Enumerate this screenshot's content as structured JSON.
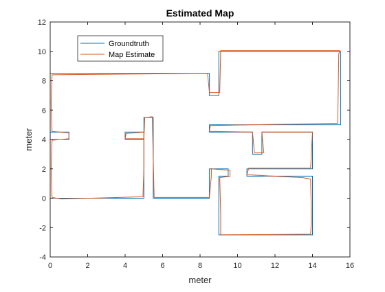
{
  "chart_data": {
    "type": "line",
    "title": "Estimated Map",
    "xlabel": "meter",
    "ylabel": "meter",
    "xlim": [
      0,
      16
    ],
    "ylim": [
      -4,
      12
    ],
    "xticks": [
      "0",
      "2",
      "4",
      "6",
      "8",
      "10",
      "12",
      "14",
      "16"
    ],
    "yticks": [
      "-4",
      "-2",
      "0",
      "2",
      "4",
      "6",
      "8",
      "10",
      "12"
    ],
    "grid": false,
    "legend_position": "top-left",
    "colors": {
      "groundtruth": "#0072BD",
      "estimate": "#D95319",
      "axes": "#262626"
    },
    "series": [
      {
        "name": "Groundtruth",
        "paths": [
          [
            [
              0,
              0
            ],
            [
              0,
              4
            ],
            [
              1,
              4
            ],
            [
              1,
              4.5
            ],
            [
              0,
              4.5
            ],
            [
              0,
              8.5
            ],
            [
              8.5,
              8.5
            ],
            [
              8.5,
              7
            ],
            [
              9,
              7
            ],
            [
              9,
              10
            ],
            [
              15.5,
              10
            ],
            [
              15.5,
              5
            ],
            [
              8.5,
              5
            ],
            [
              8.5,
              4.5
            ],
            [
              10.8,
              4.5
            ],
            [
              10.8,
              3
            ],
            [
              11.3,
              3
            ],
            [
              11.3,
              4.5
            ],
            [
              14,
              4.5
            ],
            [
              14,
              2
            ],
            [
              10.5,
              2
            ],
            [
              10.5,
              1.5
            ],
            [
              14,
              1.5
            ],
            [
              14,
              -2.5
            ],
            [
              9,
              -2.5
            ],
            [
              9,
              1.5
            ],
            [
              9.5,
              1.5
            ],
            [
              9.5,
              2
            ],
            [
              8.5,
              2
            ],
            [
              8.5,
              0
            ],
            [
              5.5,
              0
            ],
            [
              5.5,
              5.5
            ],
            [
              5,
              5.5
            ],
            [
              5,
              4
            ],
            [
              4,
              4
            ],
            [
              4,
              4.5
            ],
            [
              5,
              4.5
            ],
            [
              5,
              0
            ],
            [
              0,
              0
            ]
          ]
        ]
      },
      {
        "name": "Map Estimate",
        "paths": [
          [
            [
              0.1,
              0.05
            ],
            [
              0.05,
              2
            ],
            [
              0.1,
              3.95
            ],
            [
              1,
              4.05
            ],
            [
              1,
              4.45
            ],
            [
              0.1,
              4.55
            ],
            [
              0.05,
              6.5
            ],
            [
              0.1,
              8.4
            ],
            [
              4,
              8.45
            ],
            [
              8.4,
              8.5
            ],
            [
              8.5,
              7.2
            ],
            [
              9.05,
              7.2
            ],
            [
              9.1,
              10.05
            ],
            [
              15.45,
              10.05
            ],
            [
              15.4,
              9.8
            ],
            [
              15.35,
              5.1
            ],
            [
              8.55,
              4.95
            ],
            [
              8.5,
              4.55
            ],
            [
              10.8,
              4.5
            ],
            [
              10.9,
              3.1
            ],
            [
              11.4,
              3.1
            ],
            [
              11.3,
              4.5
            ],
            [
              14,
              4.5
            ],
            [
              13.9,
              2.05
            ],
            [
              10.6,
              2.05
            ],
            [
              10.5,
              1.6
            ],
            [
              13.5,
              1.4
            ],
            [
              13.9,
              1.3
            ],
            [
              13.95,
              -1.5
            ],
            [
              13.9,
              -2.45
            ],
            [
              9.1,
              -2.5
            ],
            [
              9.1,
              -1
            ],
            [
              9.05,
              1.4
            ],
            [
              9.6,
              1.5
            ],
            [
              9.6,
              1.9
            ],
            [
              8.6,
              2
            ],
            [
              8.6,
              1.5
            ],
            [
              8.5,
              0.05
            ],
            [
              5.55,
              0.05
            ],
            [
              5.45,
              5.55
            ],
            [
              5.05,
              5.5
            ],
            [
              5,
              4.05
            ],
            [
              4,
              4.05
            ],
            [
              4.05,
              4.4
            ],
            [
              5,
              4.5
            ],
            [
              5,
              2
            ],
            [
              4.95,
              0.1
            ],
            [
              0.6,
              -0.05
            ],
            [
              0.1,
              0.05
            ]
          ]
        ]
      }
    ]
  }
}
